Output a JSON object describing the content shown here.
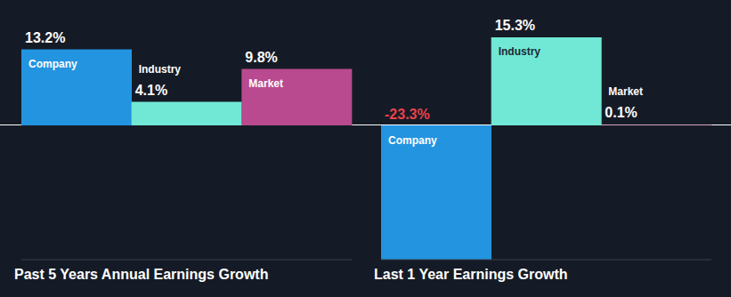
{
  "chart_data": [
    {
      "type": "bar",
      "title": "Past 5 Years Annual Earnings Growth",
      "categories": [
        "Company",
        "Industry",
        "Market"
      ],
      "values": [
        13.2,
        4.1,
        9.8
      ],
      "value_labels": [
        "13.2%",
        "4.1%",
        "9.8%"
      ],
      "colors": [
        "#2394df",
        "#71e8d5",
        "#b94a8f"
      ],
      "ylim": [
        -23.3,
        15.3
      ],
      "grid": false,
      "data_labels": true,
      "tick_labels": false
    },
    {
      "type": "bar",
      "title": "Last 1 Year Earnings Growth",
      "categories": [
        "Company",
        "Industry",
        "Market"
      ],
      "values": [
        -23.3,
        15.3,
        0.1
      ],
      "value_labels": [
        "-23.3%",
        "15.3%",
        "0.1%"
      ],
      "colors": [
        "#2394df",
        "#71e8d5",
        "#b94a8f"
      ],
      "ylim": [
        -23.3,
        15.3
      ],
      "grid": false,
      "data_labels": true,
      "tick_labels": false
    }
  ]
}
